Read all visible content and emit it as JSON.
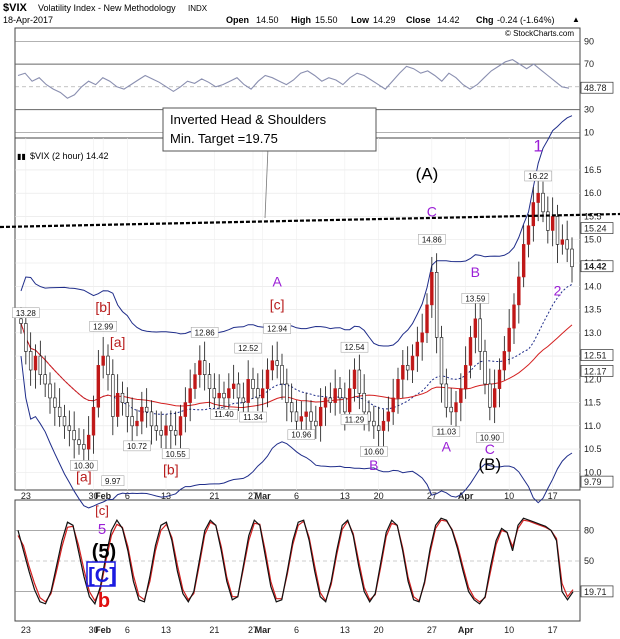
{
  "header": {
    "symbol": "$VIX",
    "name": "Volatility Index - New Methodology",
    "exchange": "INDX",
    "date": "18-Apr-2017",
    "open_label": "Open",
    "open": "14.50",
    "high_label": "High",
    "high": "15.50",
    "low_label": "Low",
    "low": "14.29",
    "close_label": "Close",
    "close": "14.42",
    "chg_label": "Chg",
    "chg": "-0.24 (-1.64%)",
    "watermark": "© StockCharts.com"
  },
  "colors": {
    "price": "#111111",
    "sma_red": "#d42020",
    "band_blue": "#1f2d8a",
    "dotted_blue": "#1f2d8a",
    "rsi_line": "#8a8fb0",
    "stoch_black": "#111111",
    "stoch_red": "#d42020",
    "wave_purple": "#9b1fd6",
    "wave_red": "#b81c1c",
    "wave_blue": "#1a1ae0",
    "label_bg_dark": "#000000"
  },
  "chart_data": [
    {
      "type": "line",
      "panel": "rsi",
      "y_ticks": [
        "90",
        "70",
        "50",
        "30",
        "10"
      ],
      "ylim": [
        10,
        90
      ],
      "last_value": "48.78",
      "values": [
        60,
        62,
        55,
        58,
        52,
        48,
        45,
        40,
        43,
        50,
        55,
        52,
        58,
        55,
        50,
        48,
        52,
        56,
        60,
        57,
        54,
        50,
        46,
        50,
        55,
        53,
        57,
        54,
        50,
        52,
        55,
        58,
        52,
        48,
        55,
        60,
        58,
        55,
        52,
        56,
        62,
        64,
        60,
        55,
        58,
        56,
        52,
        58,
        62,
        60,
        56,
        52,
        48,
        55,
        62,
        68,
        66,
        62,
        64,
        60,
        55,
        62,
        58,
        52,
        48,
        52,
        58,
        64,
        68,
        72,
        74,
        70,
        66,
        70,
        65,
        60,
        55,
        50,
        48.78
      ]
    },
    {
      "type": "candlestick",
      "panel": "price",
      "title": "$VIX (2 hour) 14.42",
      "x_ticks": [
        "23",
        "30",
        "Feb",
        "6",
        "13",
        "21",
        "27",
        "Mar",
        "6",
        "13",
        "20",
        "27",
        "Apr",
        "10",
        "17"
      ],
      "y_ticks": [
        "16.5",
        "16.0",
        "15.5",
        "15.0",
        "14.5",
        "14.0",
        "13.5",
        "13.0",
        "12.5",
        "12.0",
        "11.5",
        "11.0",
        "10.5",
        "10.0"
      ],
      "ylim": [
        9.75,
        16.8
      ],
      "price_flags": [
        {
          "value": "15.24",
          "y": 15.24
        },
        {
          "value": "14.42",
          "y": 14.42,
          "bold": true
        },
        {
          "value": "12.51",
          "y": 12.51
        },
        {
          "value": "12.17",
          "y": 12.17
        },
        {
          "value": "9.79",
          "y": 9.79
        }
      ],
      "price_labels": [
        {
          "text": "13.28",
          "x": 13.28,
          "xi": 1,
          "y": 13.28,
          "pos": "above"
        },
        {
          "text": "12.99",
          "xi": 17,
          "y": 12.99,
          "pos": "above"
        },
        {
          "text": "10.30",
          "xi": 13,
          "y": 10.3,
          "pos": "below"
        },
        {
          "text": "9.97",
          "xi": 19,
          "y": 9.97,
          "pos": "below"
        },
        {
          "text": "10.72",
          "xi": 24,
          "y": 10.72,
          "pos": "below"
        },
        {
          "text": "10.55",
          "xi": 32,
          "y": 10.55,
          "pos": "below"
        },
        {
          "text": "12.86",
          "xi": 38,
          "y": 12.86,
          "pos": "above"
        },
        {
          "text": "11.40",
          "xi": 42,
          "y": 11.4,
          "pos": "below"
        },
        {
          "text": "12.52",
          "xi": 47,
          "y": 12.52,
          "pos": "above"
        },
        {
          "text": "11.34",
          "xi": 48,
          "y": 11.34,
          "pos": "below"
        },
        {
          "text": "12.94",
          "xi": 53,
          "y": 12.94,
          "pos": "above"
        },
        {
          "text": "10.96",
          "xi": 58,
          "y": 10.96,
          "pos": "below"
        },
        {
          "text": "12.54",
          "xi": 69,
          "y": 12.54,
          "pos": "above"
        },
        {
          "text": "11.29",
          "xi": 69,
          "y": 11.29,
          "pos": "below"
        },
        {
          "text": "10.60",
          "xi": 73,
          "y": 10.6,
          "pos": "below"
        },
        {
          "text": "14.86",
          "xi": 85,
          "y": 14.86,
          "pos": "above"
        },
        {
          "text": "11.03",
          "xi": 88,
          "y": 11.03,
          "pos": "below"
        },
        {
          "text": "13.59",
          "xi": 94,
          "y": 13.59,
          "pos": "above"
        },
        {
          "text": "10.90",
          "xi": 97,
          "y": 10.9,
          "pos": "below"
        },
        {
          "text": "16.22",
          "xi": 107,
          "y": 16.22,
          "pos": "above"
        }
      ],
      "close": [
        13.2,
        12.6,
        12.2,
        12.5,
        12.1,
        11.9,
        11.6,
        11.4,
        11.2,
        11.0,
        10.9,
        10.7,
        10.6,
        10.5,
        10.8,
        11.4,
        12.3,
        12.5,
        12.1,
        11.2,
        11.7,
        11.5,
        11.2,
        11.0,
        11.1,
        11.4,
        11.3,
        11.0,
        10.9,
        10.8,
        11.0,
        10.9,
        10.8,
        11.2,
        11.5,
        11.8,
        12.1,
        12.4,
        12.1,
        11.8,
        11.6,
        11.7,
        11.6,
        11.8,
        11.9,
        11.6,
        11.5,
        12.0,
        11.8,
        11.6,
        11.8,
        12.2,
        12.4,
        12.3,
        11.9,
        11.5,
        11.3,
        11.1,
        11.2,
        11.3,
        11.1,
        11.0,
        11.4,
        11.6,
        11.5,
        11.8,
        11.6,
        11.3,
        11.8,
        12.2,
        11.7,
        11.3,
        11.1,
        11.0,
        10.9,
        11.1,
        11.3,
        11.6,
        12.0,
        12.3,
        12.2,
        12.5,
        12.8,
        13.0,
        13.6,
        14.3,
        12.9,
        11.9,
        11.4,
        11.3,
        11.5,
        11.8,
        12.3,
        12.9,
        13.3,
        12.6,
        11.9,
        11.4,
        11.8,
        12.2,
        12.6,
        13.1,
        13.6,
        14.2,
        14.9,
        15.3,
        15.8,
        16.0,
        15.6,
        15.2,
        15.5,
        14.9,
        15.0,
        14.8,
        14.42
      ]
    },
    {
      "type": "line",
      "panel": "stochastic",
      "x_ticks": [
        "23",
        "30",
        "Feb",
        "6",
        "13",
        "21",
        "27",
        "Mar",
        "6",
        "13",
        "20",
        "27",
        "Apr",
        "10",
        "17"
      ],
      "y_ticks": [
        "80",
        "50",
        "19.71"
      ],
      "ylim": [
        0,
        100
      ],
      "last_value": "19.71",
      "series": [
        {
          "values": [
            80,
            60,
            40,
            22,
            10,
            8,
            20,
            45,
            70,
            88,
            85,
            60,
            35,
            15,
            8,
            25,
            55,
            80,
            90,
            82,
            60,
            30,
            12,
            10,
            35,
            65,
            85,
            88,
            70,
            40,
            18,
            10,
            20,
            50,
            80,
            90,
            85,
            60,
            30,
            12,
            15,
            45,
            75,
            90,
            85,
            55,
            25,
            10,
            12,
            40,
            70,
            88,
            90,
            70,
            40,
            15,
            10,
            30,
            60,
            85,
            90,
            75,
            45,
            20,
            10,
            18,
            48,
            78,
            90,
            85,
            60,
            30,
            12,
            10,
            30,
            62,
            85,
            92,
            90,
            80,
            62,
            40,
            20,
            12,
            8,
            15,
            45,
            70,
            82,
            78,
            60,
            85,
            92,
            90,
            88,
            86,
            84,
            80,
            70,
            20,
            12,
            19.71
          ]
        },
        {
          "values": [
            75,
            65,
            45,
            28,
            14,
            10,
            18,
            40,
            64,
            83,
            84,
            66,
            42,
            20,
            11,
            22,
            50,
            75,
            86,
            83,
            64,
            36,
            16,
            12,
            30,
            60,
            80,
            86,
            73,
            46,
            22,
            12,
            18,
            46,
            76,
            88,
            85,
            64,
            34,
            15,
            15,
            42,
            70,
            87,
            86,
            60,
            30,
            13,
            13,
            37,
            66,
            85,
            89,
            73,
            45,
            19,
            11,
            27,
            56,
            81,
            89,
            77,
            50,
            24,
            12,
            17,
            44,
            74,
            87,
            85,
            63,
            34,
            15,
            11,
            28,
            58,
            82,
            90,
            89,
            81,
            65,
            44,
            24,
            14,
            10,
            14,
            40,
            66,
            80,
            78,
            64,
            82,
            90,
            89,
            87,
            85,
            83,
            80,
            72,
            28,
            15,
            22
          ]
        }
      ]
    }
  ],
  "annotations": {
    "callout": [
      "Inverted Head & Shoulders",
      "Min. Target =19.75"
    ],
    "labels": [
      {
        "text": "1",
        "color": "purple",
        "size": "big",
        "xi": 107,
        "y": 16.9
      },
      {
        "text": "(A)",
        "color": "black",
        "size": "big",
        "xi": 84,
        "y": 16.3
      },
      {
        "text": "C",
        "color": "purple",
        "size": "mid",
        "xi": 85,
        "y": 15.5
      },
      {
        "text": "A",
        "color": "purple",
        "size": "mid",
        "xi": 53,
        "y": 14.0
      },
      {
        "text": "[c]",
        "color": "red",
        "size": "mid",
        "xi": 53,
        "y": 13.5
      },
      {
        "text": "[b]",
        "color": "red",
        "size": "mid",
        "xi": 17,
        "y": 13.45
      },
      {
        "text": "[a]",
        "color": "red",
        "size": "mid",
        "xi": 20,
        "y": 12.7
      },
      {
        "text": "[a]",
        "color": "red",
        "size": "mid",
        "xi": 13,
        "y": 9.8
      },
      {
        "text": "[b]",
        "color": "red",
        "size": "mid",
        "xi": 31,
        "y": 9.95
      },
      {
        "text": "B",
        "color": "purple",
        "size": "mid",
        "xi": 73,
        "y": 10.05
      },
      {
        "text": "B",
        "color": "purple",
        "size": "mid",
        "xi": 94,
        "y": 14.2
      },
      {
        "text": "A",
        "color": "purple",
        "size": "mid",
        "xi": 88,
        "y": 10.45
      },
      {
        "text": "C",
        "color": "purple",
        "size": "mid",
        "xi": 97,
        "y": 10.4
      },
      {
        "text": "(B)",
        "color": "black",
        "size": "big",
        "xi": 97,
        "y": 10.05
      },
      {
        "text": "2",
        "color": "purple",
        "size": "mid",
        "xi": 111,
        "y": 13.8
      }
    ],
    "lower_stack": [
      "[c]",
      "5",
      "(5)",
      "[C]",
      "b"
    ]
  }
}
